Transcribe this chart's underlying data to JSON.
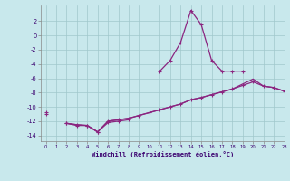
{
  "x": [
    0,
    1,
    2,
    3,
    4,
    5,
    6,
    7,
    8,
    9,
    10,
    11,
    12,
    13,
    14,
    15,
    16,
    17,
    18,
    19,
    20,
    21,
    22,
    23
  ],
  "line1_y": [
    null,
    null,
    null,
    null,
    null,
    null,
    null,
    null,
    null,
    null,
    null,
    -5.0,
    -3.5,
    -1.0,
    3.5,
    1.5,
    -3.5,
    -5.0,
    -5.0,
    -5.0,
    null,
    null,
    null,
    null
  ],
  "line2_y": [
    -11.0,
    null,
    -12.3,
    -12.6,
    -12.6,
    -13.5,
    -12.2,
    -12.0,
    -11.8,
    null,
    null,
    null,
    null,
    null,
    null,
    null,
    null,
    null,
    null,
    null,
    null,
    null,
    null,
    null
  ],
  "line3_y": [
    -10.8,
    null,
    -12.3,
    -12.5,
    -12.6,
    -13.5,
    -12.0,
    -11.8,
    -11.6,
    -11.2,
    -10.8,
    -10.4,
    -10.0,
    -9.6,
    -9.0,
    -8.7,
    -8.3,
    -7.9,
    -7.5,
    -7.0,
    -6.5,
    -7.1,
    -7.3,
    -7.8
  ],
  "line4_y": [
    -10.8,
    null,
    -12.3,
    -12.5,
    -12.6,
    -13.5,
    -12.0,
    -11.8,
    -11.6,
    -11.2,
    -10.8,
    -10.4,
    -10.0,
    -9.6,
    -9.0,
    -8.7,
    -8.3,
    -7.9,
    -7.5,
    -6.8,
    -6.1,
    -7.1,
    -7.3,
    -7.8
  ],
  "xlim": [
    -0.5,
    23.0
  ],
  "ylim": [
    -14.8,
    4.2
  ],
  "yticks": [
    2,
    0,
    -2,
    -4,
    -6,
    -8,
    -10,
    -12,
    -14
  ],
  "xticks": [
    0,
    1,
    2,
    3,
    4,
    5,
    6,
    7,
    8,
    9,
    10,
    11,
    12,
    13,
    14,
    15,
    16,
    17,
    18,
    19,
    20,
    21,
    22,
    23
  ],
  "xlabel": "Windchill (Refroidissement éolien,°C)",
  "line_color": "#8B2580",
  "bg_color": "#C8E8EC",
  "grid_color": "#A0C8CC"
}
